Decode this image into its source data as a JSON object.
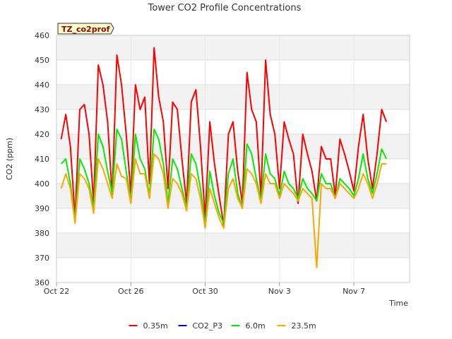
{
  "chart_data": {
    "type": "line",
    "title": "Tower CO2 Profile Concentrations",
    "tag": "TZ_co2prof",
    "xlabel": "Time",
    "ylabel": "CO2 (ppm)",
    "ylim": [
      360,
      460
    ],
    "yticks": [
      360,
      370,
      380,
      390,
      400,
      410,
      420,
      430,
      440,
      450,
      460
    ],
    "xlim": [
      "2023-10-22",
      "2023-11-10"
    ],
    "xticks": [
      {
        "label": "Oct 22",
        "x": "2023-10-22"
      },
      {
        "label": "Oct 26",
        "x": "2023-10-26"
      },
      {
        "label": "Oct 30",
        "x": "2023-10-30"
      },
      {
        "label": "Nov 3",
        "x": "2023-11-03"
      },
      {
        "label": "Nov 7",
        "x": "2023-11-07"
      }
    ],
    "grid": true,
    "legend_position": "bottom",
    "series": [
      {
        "name": "0.35m",
        "color": "#ff0000",
        "x": [
          "2023-10-22 06:00",
          "2023-10-22 12:00",
          "2023-10-22 18:00",
          "2023-10-23 00:00",
          "2023-10-23 06:00",
          "2023-10-23 12:00",
          "2023-10-23 18:00",
          "2023-10-24 00:00",
          "2023-10-24 06:00",
          "2023-10-24 12:00",
          "2023-10-24 18:00",
          "2023-10-25 00:00",
          "2023-10-25 06:00",
          "2023-10-25 12:00",
          "2023-10-25 18:00",
          "2023-10-26 00:00",
          "2023-10-26 06:00",
          "2023-10-26 12:00",
          "2023-10-26 18:00",
          "2023-10-27 00:00",
          "2023-10-27 06:00",
          "2023-10-27 12:00",
          "2023-10-27 18:00",
          "2023-10-28 00:00",
          "2023-10-28 06:00",
          "2023-10-28 12:00",
          "2023-10-28 18:00",
          "2023-10-29 00:00",
          "2023-10-29 06:00",
          "2023-10-29 12:00",
          "2023-10-29 18:00",
          "2023-10-30 00:00",
          "2023-10-30 06:00",
          "2023-10-30 12:00",
          "2023-10-30 18:00",
          "2023-10-31 00:00",
          "2023-10-31 06:00",
          "2023-10-31 12:00",
          "2023-10-31 18:00",
          "2023-11-01 00:00",
          "2023-11-01 06:00",
          "2023-11-01 12:00",
          "2023-11-01 18:00",
          "2023-11-02 00:00",
          "2023-11-02 06:00",
          "2023-11-02 12:00",
          "2023-11-02 18:00",
          "2023-11-03 00:00",
          "2023-11-03 06:00",
          "2023-11-03 12:00",
          "2023-11-03 18:00",
          "2023-11-04 00:00",
          "2023-11-04 06:00",
          "2023-11-04 12:00",
          "2023-11-04 18:00",
          "2023-11-05 00:00",
          "2023-11-05 06:00",
          "2023-11-05 12:00",
          "2023-11-05 18:00",
          "2023-11-06 00:00",
          "2023-11-06 06:00",
          "2023-11-06 12:00",
          "2023-11-06 18:00",
          "2023-11-07 00:00",
          "2023-11-07 06:00",
          "2023-11-07 12:00",
          "2023-11-07 18:00",
          "2023-11-08 00:00",
          "2023-11-08 06:00",
          "2023-11-08 12:00",
          "2023-11-08 18:00"
        ],
        "values": [
          418,
          428,
          415,
          386,
          430,
          432,
          420,
          392,
          448,
          440,
          425,
          395,
          452,
          440,
          420,
          396,
          440,
          430,
          435,
          400,
          455,
          435,
          425,
          398,
          433,
          430,
          410,
          392,
          433,
          438,
          415,
          386,
          425,
          408,
          395,
          383,
          420,
          425,
          405,
          392,
          445,
          430,
          425,
          395,
          450,
          428,
          420,
          398,
          425,
          418,
          412,
          392,
          420,
          412,
          405,
          393,
          415,
          410,
          410,
          395,
          418,
          412,
          405,
          397,
          415,
          428,
          410,
          398,
          412,
          430,
          425
        ]
      },
      {
        "name": "CO2_P3",
        "color": "#0000cc",
        "x": [],
        "values": []
      },
      {
        "name": "6.0m",
        "color": "#00ee00",
        "x": [
          "2023-10-22 06:00",
          "2023-10-22 12:00",
          "2023-10-22 18:00",
          "2023-10-23 00:00",
          "2023-10-23 06:00",
          "2023-10-23 12:00",
          "2023-10-23 18:00",
          "2023-10-24 00:00",
          "2023-10-24 06:00",
          "2023-10-24 12:00",
          "2023-10-24 18:00",
          "2023-10-25 00:00",
          "2023-10-25 06:00",
          "2023-10-25 12:00",
          "2023-10-25 18:00",
          "2023-10-26 00:00",
          "2023-10-26 06:00",
          "2023-10-26 12:00",
          "2023-10-26 18:00",
          "2023-10-27 00:00",
          "2023-10-27 06:00",
          "2023-10-27 12:00",
          "2023-10-27 18:00",
          "2023-10-28 00:00",
          "2023-10-28 06:00",
          "2023-10-28 12:00",
          "2023-10-28 18:00",
          "2023-10-29 00:00",
          "2023-10-29 06:00",
          "2023-10-29 12:00",
          "2023-10-29 18:00",
          "2023-10-30 00:00",
          "2023-10-30 06:00",
          "2023-10-30 12:00",
          "2023-10-30 18:00",
          "2023-10-31 00:00",
          "2023-10-31 06:00",
          "2023-10-31 12:00",
          "2023-10-31 18:00",
          "2023-11-01 00:00",
          "2023-11-01 06:00",
          "2023-11-01 12:00",
          "2023-11-01 18:00",
          "2023-11-02 00:00",
          "2023-11-02 06:00",
          "2023-11-02 12:00",
          "2023-11-02 18:00",
          "2023-11-03 00:00",
          "2023-11-03 06:00",
          "2023-11-03 12:00",
          "2023-11-03 18:00",
          "2023-11-04 00:00",
          "2023-11-04 06:00",
          "2023-11-04 12:00",
          "2023-11-04 18:00",
          "2023-11-05 00:00",
          "2023-11-05 06:00",
          "2023-11-05 12:00",
          "2023-11-05 18:00",
          "2023-11-06 00:00",
          "2023-11-06 06:00",
          "2023-11-06 12:00",
          "2023-11-06 18:00",
          "2023-11-07 00:00",
          "2023-11-07 06:00",
          "2023-11-07 12:00",
          "2023-11-07 18:00",
          "2023-11-08 00:00",
          "2023-11-08 06:00",
          "2023-11-08 12:00",
          "2023-11-08 18:00"
        ],
        "values": [
          408,
          410,
          400,
          385,
          410,
          406,
          400,
          390,
          420,
          415,
          405,
          396,
          422,
          418,
          405,
          393,
          420,
          410,
          406,
          395,
          422,
          418,
          408,
          392,
          410,
          406,
          398,
          390,
          412,
          408,
          398,
          383,
          405,
          395,
          388,
          384,
          404,
          410,
          396,
          390,
          416,
          412,
          402,
          393,
          412,
          404,
          402,
          395,
          405,
          400,
          398,
          394,
          402,
          398,
          396,
          393,
          404,
          400,
          400,
          394,
          402,
          400,
          398,
          395,
          402,
          412,
          402,
          396,
          404,
          414,
          410
        ]
      },
      {
        "name": "23.5m",
        "color": "#ffa500",
        "x": [
          "2023-10-22 06:00",
          "2023-10-22 12:00",
          "2023-10-22 18:00",
          "2023-10-23 00:00",
          "2023-10-23 06:00",
          "2023-10-23 12:00",
          "2023-10-23 18:00",
          "2023-10-24 00:00",
          "2023-10-24 06:00",
          "2023-10-24 12:00",
          "2023-10-24 18:00",
          "2023-10-25 00:00",
          "2023-10-25 06:00",
          "2023-10-25 12:00",
          "2023-10-25 18:00",
          "2023-10-26 00:00",
          "2023-10-26 06:00",
          "2023-10-26 12:00",
          "2023-10-26 18:00",
          "2023-10-27 00:00",
          "2023-10-27 06:00",
          "2023-10-27 12:00",
          "2023-10-27 18:00",
          "2023-10-28 00:00",
          "2023-10-28 06:00",
          "2023-10-28 12:00",
          "2023-10-28 18:00",
          "2023-10-29 00:00",
          "2023-10-29 06:00",
          "2023-10-29 12:00",
          "2023-10-29 18:00",
          "2023-10-30 00:00",
          "2023-10-30 06:00",
          "2023-10-30 12:00",
          "2023-10-30 18:00",
          "2023-10-31 00:00",
          "2023-10-31 06:00",
          "2023-10-31 12:00",
          "2023-10-31 18:00",
          "2023-11-01 00:00",
          "2023-11-01 06:00",
          "2023-11-01 12:00",
          "2023-11-01 18:00",
          "2023-11-02 00:00",
          "2023-11-02 06:00",
          "2023-11-02 12:00",
          "2023-11-02 18:00",
          "2023-11-03 00:00",
          "2023-11-03 06:00",
          "2023-11-03 12:00",
          "2023-11-03 18:00",
          "2023-11-04 00:00",
          "2023-11-04 06:00",
          "2023-11-04 12:00",
          "2023-11-04 18:00",
          "2023-11-05 00:00",
          "2023-11-05 06:00",
          "2023-11-05 12:00",
          "2023-11-05 18:00",
          "2023-11-06 00:00",
          "2023-11-06 06:00",
          "2023-11-06 12:00",
          "2023-11-06 18:00",
          "2023-11-07 00:00",
          "2023-11-07 06:00",
          "2023-11-07 12:00",
          "2023-11-07 18:00",
          "2023-11-08 00:00",
          "2023-11-08 06:00",
          "2023-11-08 12:00",
          "2023-11-08 18:00"
        ],
        "values": [
          398,
          404,
          398,
          384,
          404,
          402,
          398,
          388,
          410,
          406,
          400,
          394,
          408,
          403,
          402,
          392,
          410,
          404,
          404,
          394,
          412,
          410,
          404,
          390,
          402,
          400,
          396,
          389,
          404,
          402,
          394,
          382,
          398,
          392,
          386,
          382,
          398,
          402,
          394,
          390,
          406,
          404,
          400,
          392,
          404,
          400,
          400,
          394,
          400,
          398,
          396,
          393,
          398,
          396,
          394,
          366,
          400,
          398,
          398,
          394,
          400,
          398,
          396,
          394,
          398,
          404,
          400,
          394,
          400,
          408,
          408
        ]
      }
    ]
  }
}
